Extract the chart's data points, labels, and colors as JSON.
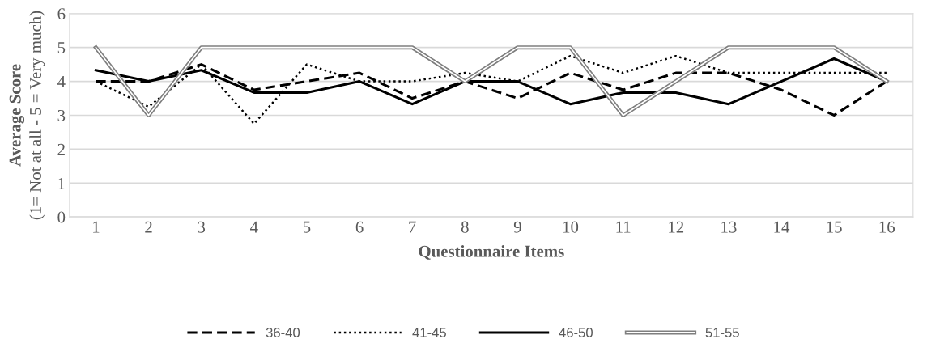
{
  "chart_data": {
    "type": "line",
    "xlabel": "Questionnaire Items",
    "ylabel": "Average Score\n(1= Not at all - 5 = Very much)",
    "categories": [
      "1",
      "2",
      "3",
      "4",
      "5",
      "6",
      "7",
      "8",
      "9",
      "10",
      "11",
      "12",
      "13",
      "14",
      "15",
      "16"
    ],
    "ylim": [
      0,
      6
    ],
    "yticks": [
      0,
      1,
      2,
      3,
      4,
      5,
      6
    ],
    "grid": "y",
    "legend": "bottom",
    "marker": "none",
    "series": [
      {
        "name": "36-40",
        "color": "#000000",
        "line_style": "dashed",
        "values": [
          4,
          4,
          4.5,
          3.75,
          4,
          4.25,
          3.5,
          4,
          3.5,
          4.25,
          3.75,
          4.25,
          4.25,
          3.75,
          3,
          4
        ]
      },
      {
        "name": "41-45",
        "color": "#000000",
        "line_style": "dotted",
        "values": [
          4,
          3.25,
          4.5,
          2.75,
          4.5,
          4,
          4,
          4.25,
          4,
          4.75,
          4.25,
          4.75,
          4.25,
          4.25,
          4.25,
          4.25
        ]
      },
      {
        "name": "46-50",
        "color": "#000000",
        "line_style": "solid",
        "values": [
          4.33,
          4,
          4.33,
          3.67,
          3.67,
          4,
          3.33,
          4,
          4,
          3.33,
          3.67,
          3.67,
          3.33,
          4,
          4.67,
          4
        ]
      },
      {
        "name": "51-55",
        "color": "#7f7f7f",
        "line_style": "solid",
        "values": [
          5,
          3,
          5,
          5,
          5,
          5,
          5,
          4,
          5,
          5,
          3,
          4,
          5,
          5,
          5,
          4
        ]
      }
    ]
  }
}
